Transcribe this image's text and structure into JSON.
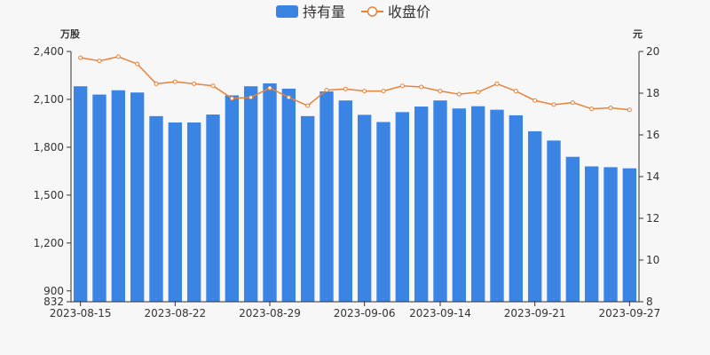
{
  "chart_data": {
    "type": "bar",
    "legend": [
      {
        "label": "持有量",
        "kind": "bar",
        "color": "#3a84e3"
      },
      {
        "label": "收盘价",
        "kind": "line",
        "color": "#e8833a"
      }
    ],
    "left_axis": {
      "unit": "万股",
      "min": 832,
      "max": 2400,
      "ticks": [
        832,
        900,
        1200,
        1500,
        1800,
        2100,
        2400
      ]
    },
    "right_axis": {
      "unit": "元",
      "min": 8,
      "max": 20,
      "ticks": [
        8,
        10,
        12,
        14,
        16,
        18,
        20
      ]
    },
    "x_tick_labels": [
      "2023-08-15",
      "2023-08-22",
      "2023-08-29",
      "2023-09-06",
      "2023-09-14",
      "2023-09-21",
      "2023-09-27"
    ],
    "x_tick_indices": [
      0,
      5,
      10,
      15,
      19,
      24,
      29
    ],
    "series": [
      {
        "name": "持有量",
        "type": "bar",
        "axis": "left",
        "values": [
          2182,
          2130,
          2157,
          2143,
          1995,
          1955,
          1955,
          2005,
          2125,
          2182,
          2200,
          2167,
          1995,
          2150,
          2093,
          2003,
          1958,
          2020,
          2055,
          2093,
          2043,
          2057,
          2035,
          2000,
          1900,
          1842,
          1740,
          1680,
          1675,
          1668
        ]
      },
      {
        "name": "收盘价",
        "type": "line",
        "axis": "right",
        "values": [
          19.7,
          19.55,
          19.75,
          19.4,
          18.45,
          18.55,
          18.45,
          18.35,
          17.75,
          17.8,
          18.25,
          17.8,
          17.4,
          18.15,
          18.2,
          18.1,
          18.1,
          18.35,
          18.3,
          18.1,
          17.95,
          18.05,
          18.45,
          18.1,
          17.65,
          17.45,
          17.55,
          17.25,
          17.3,
          17.2
        ]
      }
    ]
  }
}
